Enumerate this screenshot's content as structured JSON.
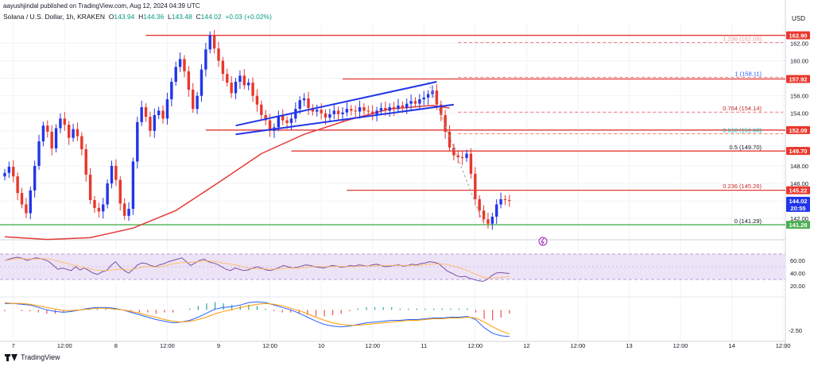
{
  "header": {
    "publisher": "aayushjindal published on TradingView.com, Aug 12, 2024 04:39 UTC",
    "symbol": "Solana / U.S. Dollar, 1h, KRAKEN",
    "open_label": "O",
    "open": "143.94",
    "high_label": "H",
    "high": "144.36",
    "low_label": "L",
    "low": "143.48",
    "close_label": "C",
    "close": "144.02",
    "change": "+0.03 (+0.02%)"
  },
  "footer": {
    "brand": "TradingView"
  },
  "colors": {
    "up": "#2136e8",
    "down": "#e8372c",
    "ma": "#e53935",
    "support": "#4caf50",
    "res": "#e53935",
    "trend": "#2136e8",
    "rsi": "#7b4fa3",
    "rsi_band": "#ede3f7",
    "macd": "#2962ff",
    "signal": "#ff9800",
    "fib": "#ef5350"
  },
  "chart_data": [
    {
      "type": "candlestick",
      "title": "Solana / U.S. Dollar, 1h, KRAKEN",
      "currency": "USD",
      "ylim": [
        140.2,
        164.4
      ],
      "y_ticks": [
        142.0,
        144.0,
        146.0,
        148.0,
        150.0,
        152.0,
        154.0,
        156.0,
        158.0,
        160.0,
        162.0
      ],
      "x_ticks": [
        "7",
        "12:00",
        "8",
        "12:00",
        "9",
        "12:00",
        "10",
        "12:00",
        "11",
        "12:00",
        "12",
        "12:00",
        "13",
        "12:00",
        "14",
        "12:00"
      ],
      "x_tick_index": [
        2,
        14,
        26,
        38,
        50,
        62,
        74,
        86,
        98,
        110,
        122,
        134,
        146,
        158,
        170,
        182
      ],
      "candles_index_start": 0,
      "closes": [
        147.2,
        147.9,
        146.8,
        144.9,
        143.6,
        142.6,
        145.2,
        148.0,
        150.8,
        152.6,
        151.9,
        150.0,
        152.3,
        153.4,
        152.7,
        151.2,
        152.2,
        151.4,
        149.9,
        147.0,
        144.1,
        143.2,
        142.8,
        143.6,
        146.0,
        148.0,
        146.4,
        143.7,
        142.3,
        143.1,
        148.5,
        153.0,
        154.7,
        153.6,
        152.0,
        153.8,
        154.3,
        153.4,
        155.6,
        157.6,
        159.3,
        160.2,
        158.8,
        156.7,
        154.5,
        156.0,
        159.0,
        161.3,
        162.9,
        161.4,
        160.0,
        158.5,
        157.5,
        156.3,
        157.6,
        158.3,
        157.2,
        157.5,
        156.0,
        155.0,
        153.8,
        153.2,
        152.0,
        152.4,
        153.7,
        153.2,
        152.9,
        153.4,
        154.5,
        155.5,
        155.7,
        154.6,
        154.2,
        154.4,
        154.0,
        153.5,
        153.9,
        154.3,
        153.9,
        154.1,
        154.5,
        154.3,
        154.2,
        154.7,
        154.3,
        154.2,
        153.9,
        154.3,
        154.6,
        154.3,
        154.7,
        154.5,
        154.9,
        154.6,
        155.1,
        155.4,
        155.1,
        155.6,
        155.8,
        156.2,
        156.6,
        155.0,
        153.8,
        151.9,
        150.1,
        149.2,
        149.0,
        148.9,
        149.4,
        147.1,
        144.2,
        142.9,
        141.9,
        141.4,
        142.2,
        143.6,
        144.2,
        144.1,
        144.02
      ],
      "markers": {
        "fib_1.236": 162.08,
        "fib_1": 158.11,
        "fib_0.764": 154.14,
        "fib_0.618": 151.68,
        "fib_0.5": 149.7,
        "fib_0.236": 145.26,
        "fib_0": 141.29
      },
      "fib_labels": [
        "1.236 (162.08)",
        "1 (158.11)",
        "0.764 (154.14)",
        "0.618 (151.68)",
        "0.5 (149.70)",
        "0.236 (145.26)",
        "0 (141.29)"
      ],
      "price_tags": [
        {
          "label": "162.90",
          "value": 162.9,
          "color": "#e8372c"
        },
        {
          "label": "157.92",
          "value": 157.92,
          "color": "#e8372c"
        },
        {
          "label": "152.09",
          "value": 152.09,
          "color": "#e8372c"
        },
        {
          "label": "149.70",
          "value": 149.7,
          "color": "#e8372c"
        },
        {
          "label": "145.22",
          "value": 145.22,
          "color": "#e8372c"
        },
        {
          "label": "144.02",
          "value": 144.02,
          "color": "#2136e8"
        },
        {
          "label": "20:55",
          "value": 143.2,
          "color": "#2136e8"
        },
        {
          "label": "141.28",
          "value": 141.28,
          "color": "#4caf50"
        }
      ],
      "resistance_levels": [
        {
          "value": 162.9,
          "from": 33,
          "to": 186
        },
        {
          "value": 157.92,
          "from": 79,
          "to": 186
        },
        {
          "value": 152.09,
          "from": 47,
          "to": 186
        },
        {
          "value": 149.7,
          "from": 67,
          "to": 186
        },
        {
          "value": 145.22,
          "from": 80,
          "to": 186
        }
      ],
      "support_level": {
        "value": 141.28,
        "from": 0,
        "to": 186
      },
      "trendlines": [
        {
          "from": [
            54,
            152.6
          ],
          "to": [
            101,
            157.6
          ]
        },
        {
          "from": [
            54,
            151.6
          ],
          "to": [
            105,
            155.0
          ]
        }
      ],
      "ma": [
        {
          "i": 0,
          "v": 139.9
        },
        {
          "i": 10,
          "v": 139.6
        },
        {
          "i": 20,
          "v": 139.8
        },
        {
          "i": 30,
          "v": 140.9
        },
        {
          "i": 40,
          "v": 142.9
        },
        {
          "i": 50,
          "v": 146.1
        },
        {
          "i": 60,
          "v": 149.4
        },
        {
          "i": 70,
          "v": 151.6
        },
        {
          "i": 80,
          "v": 153.2
        },
        {
          "i": 90,
          "v": 154.5
        },
        {
          "i": 100,
          "v": 154.9
        },
        {
          "i": 104,
          "v": 154.6
        }
      ]
    },
    {
      "type": "line",
      "name": "RSI",
      "ylim": [
        5,
        80
      ],
      "y_ticks": [
        20.0,
        40.0,
        60.0
      ],
      "band": [
        30,
        70
      ],
      "values": [
        60,
        62,
        64,
        65,
        63,
        60,
        62,
        64,
        63,
        61,
        58,
        52,
        46,
        48,
        46,
        44,
        50,
        45,
        48,
        44,
        40,
        38,
        42,
        44,
        52,
        58,
        50,
        44,
        40,
        46,
        53,
        56,
        55,
        52,
        50,
        53,
        55,
        58,
        60,
        62,
        64,
        58,
        52,
        56,
        60,
        62,
        58,
        56,
        54,
        50,
        46,
        44,
        48,
        46,
        44,
        45,
        48,
        50,
        48,
        45,
        44,
        46,
        49,
        52,
        50,
        48,
        49,
        51,
        53,
        52,
        50,
        49,
        48,
        50,
        52,
        51,
        49,
        50,
        52,
        51,
        53,
        52,
        51,
        53,
        54,
        52,
        50,
        51,
        52,
        53,
        51,
        52,
        54,
        53,
        55,
        56,
        58,
        57,
        55,
        49,
        43,
        40,
        36,
        34,
        35,
        32,
        30,
        28,
        27,
        30,
        36,
        40,
        41,
        40,
        39.5
      ]
    },
    {
      "type": "line",
      "name": "MACD",
      "ylim": [
        -3.7,
        1.6
      ],
      "y_ticks": [
        -2.5
      ],
      "macd": [
        0.8,
        0.8,
        0.7,
        0.6,
        0.3,
        0.0,
        -0.2,
        -0.3,
        -0.2,
        0.0,
        0.2,
        0.3,
        0.3,
        0.2,
        0.0,
        -0.3,
        -0.6,
        -0.9,
        -1.2,
        -1.4,
        -1.6,
        -1.5,
        -1.3,
        -0.9,
        -0.4,
        0.1,
        0.3,
        0.4,
        0.6,
        0.9,
        1.0,
        0.9,
        0.6,
        0.3,
        0.0,
        -0.4,
        -0.9,
        -1.4,
        -1.8,
        -2.0,
        -2.1,
        -2.0,
        -1.8,
        -1.6,
        -1.5,
        -1.4,
        -1.3,
        -1.3,
        -1.2,
        -1.2,
        -1.1,
        -1.0,
        -1.0,
        -0.9,
        -0.9,
        -0.8,
        -1.2,
        -2.2,
        -2.9,
        -3.2,
        -3.3
      ],
      "signal": [
        0.9,
        0.8,
        0.8,
        0.7,
        0.5,
        0.3,
        0.1,
        -0.1,
        -0.1,
        0.0,
        0.1,
        0.2,
        0.2,
        0.1,
        0.0,
        -0.2,
        -0.4,
        -0.7,
        -0.9,
        -1.2,
        -1.4,
        -1.5,
        -1.4,
        -1.2,
        -0.9,
        -0.5,
        -0.2,
        0.0,
        0.3,
        0.5,
        0.7,
        0.8,
        0.7,
        0.5,
        0.2,
        -0.1,
        -0.5,
        -0.9,
        -1.3,
        -1.6,
        -1.8,
        -1.9,
        -1.9,
        -1.8,
        -1.7,
        -1.6,
        -1.5,
        -1.4,
        -1.3,
        -1.3,
        -1.2,
        -1.1,
        -1.1,
        -1.0,
        -1.0,
        -0.9,
        -1.0,
        -1.5,
        -2.1,
        -2.6,
        -3.0
      ]
    }
  ]
}
